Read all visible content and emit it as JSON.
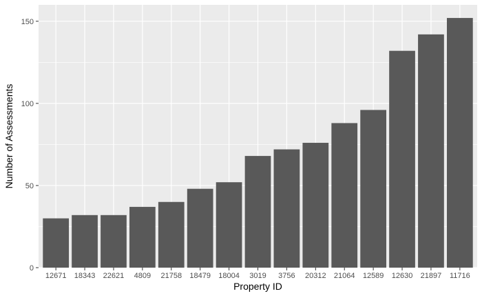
{
  "chart_data": {
    "type": "bar",
    "title": "",
    "xlabel": "Property ID",
    "ylabel": "Number of Assessments",
    "categories": [
      "12671",
      "18343",
      "22621",
      "4809",
      "21758",
      "18479",
      "18004",
      "3019",
      "3756",
      "20312",
      "21064",
      "12589",
      "12630",
      "21897",
      "11716"
    ],
    "values": [
      30,
      32,
      32,
      37,
      40,
      48,
      52,
      68,
      72,
      76,
      88,
      96,
      132,
      142,
      152
    ],
    "ylim": [
      0,
      160
    ],
    "yticks": [
      0,
      50,
      100,
      150
    ],
    "grid": true,
    "legend": "none",
    "colors": {
      "panel_background": "#ebebeb",
      "grid_major": "#ffffff",
      "bar_fill": "#595959",
      "tick_text": "#4d4d4d",
      "title_text": "#000000"
    }
  }
}
